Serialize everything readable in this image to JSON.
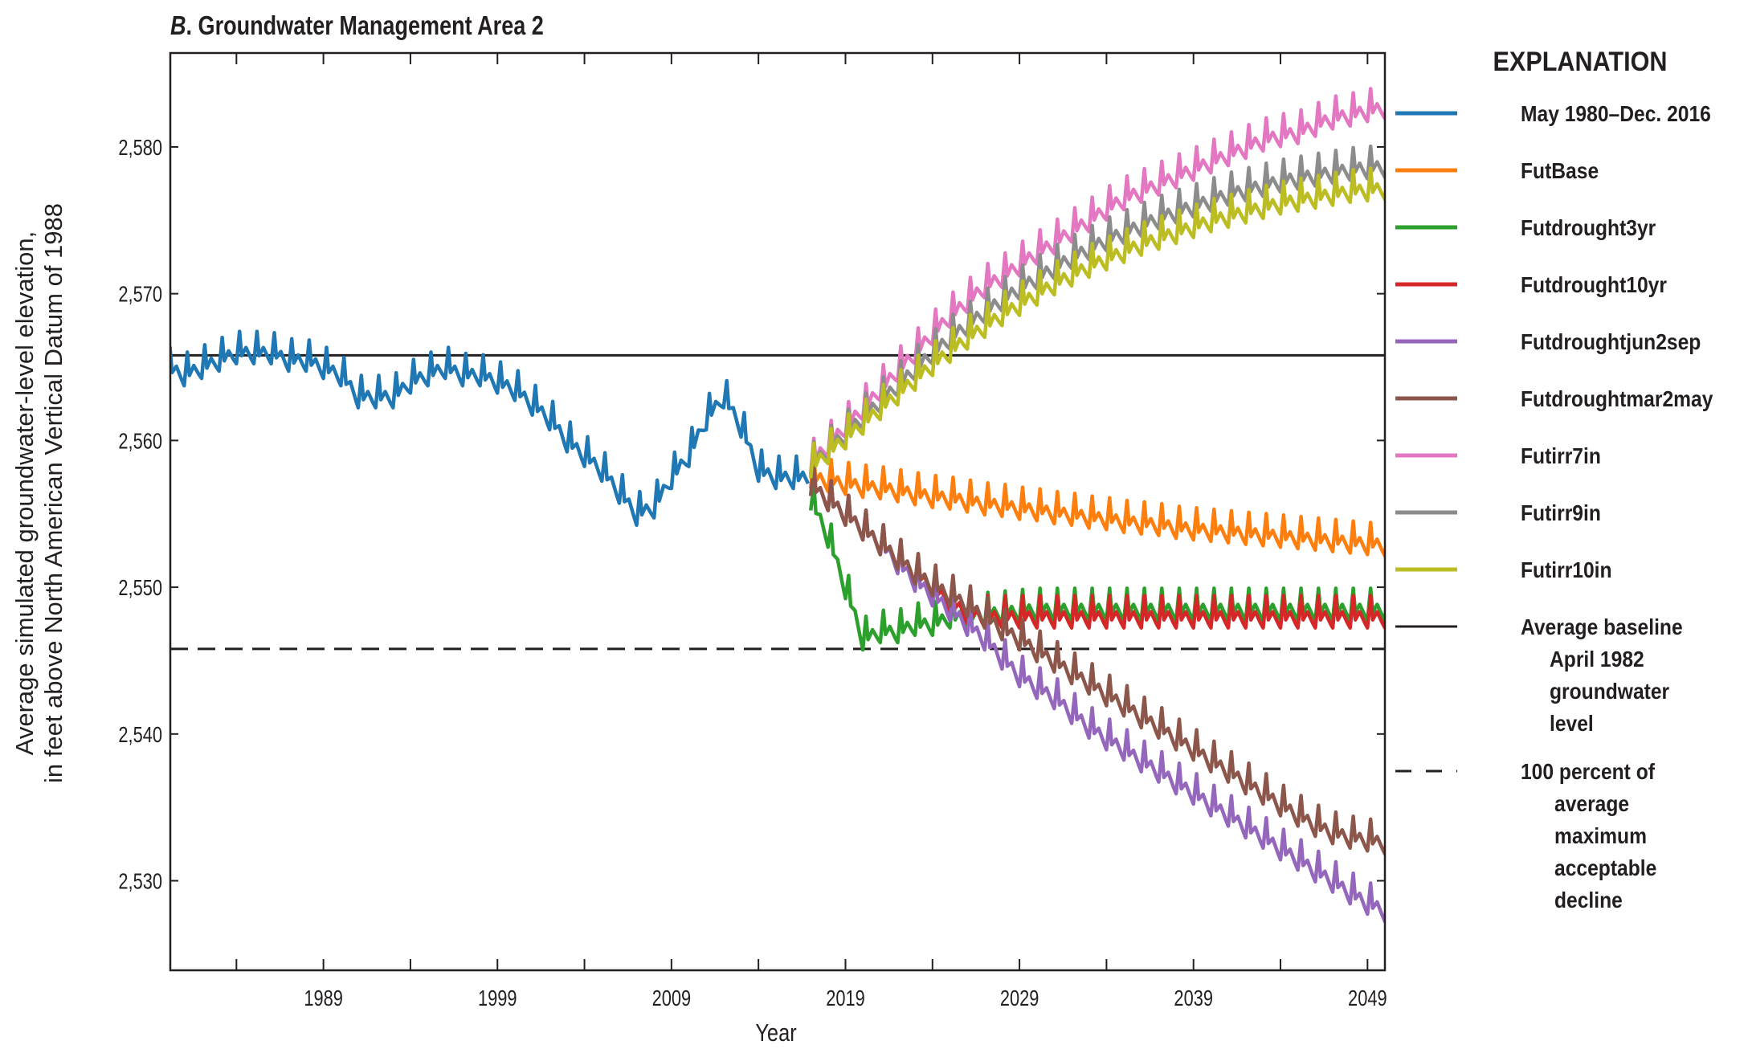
{
  "chart_data": {
    "type": "line",
    "title_prefix": "B",
    "title": ". Groundwater Management Area 2",
    "xlabel": "Year",
    "ylabel_line1": "Average simulated groundwater-level elevation,",
    "ylabel_line2": "in feet above North American Vertical Datum of 1988",
    "xlim": [
      1980.2,
      2050.0
    ],
    "ylim": [
      2523.9,
      2586.4
    ],
    "x_ticks_major": [
      1989,
      1999,
      2009,
      2019,
      2029,
      2039,
      2049
    ],
    "x_tick_labels": [
      "1989",
      "1999",
      "2009",
      "2019",
      "2029",
      "2039",
      "2049"
    ],
    "x_ticks_minor": [
      1984,
      1994,
      2004,
      2014,
      2024,
      2034,
      2044
    ],
    "y_ticks": [
      2530,
      2540,
      2550,
      2560,
      2570,
      2580
    ],
    "y_tick_labels": [
      "2,530",
      "2,540",
      "2,550",
      "2,560",
      "2,570",
      "2,580"
    ],
    "grid": false,
    "legend_title": "EXPLANATION",
    "legend_placement": "right-outside",
    "seasonal_amplitude_ft": 2.2,
    "series": [
      {
        "name": "May 1980–Dec. 2016",
        "color": "#1f77b4",
        "start_year": 1980,
        "values": [
          2565,
          2564.5,
          2565,
          2565.5,
          2566,
          2566,
          2566,
          2565.5,
          2565.5,
          2565,
          2564.5,
          2563,
          2563,
          2563,
          2564,
          2564.5,
          2565,
          2564.5,
          2564.5,
          2564,
          2563.5,
          2562.5,
          2561.5,
          2560,
          2559,
          2558,
          2556.5,
          2555,
          2555.5,
          2557.5,
          2559,
          2561.5,
          2563,
          2561,
          2558,
          2557.5,
          2557.5
        ]
      },
      {
        "name": "FutBase",
        "color": "#ff7f0e",
        "start_year": 2017,
        "values": [
          2557.5,
          2557.3,
          2557.1,
          2556.9,
          2556.8,
          2556.6,
          2556.4,
          2556.2,
          2556.1,
          2555.9,
          2555.7,
          2555.6,
          2555.4,
          2555.3,
          2555.1,
          2555,
          2554.8,
          2554.7,
          2554.5,
          2554.4,
          2554.3,
          2554.1,
          2554,
          2553.9,
          2553.8,
          2553.7,
          2553.6,
          2553.5,
          2553.4,
          2553.3,
          2553.2,
          2553.1,
          2553,
          2552.9
        ]
      },
      {
        "name": "Futdrought3yr",
        "color": "#2ca02c",
        "start_year": 2017,
        "values": [
          2556,
          2553.5,
          2550,
          2546.5,
          2547,
          2547,
          2547.5,
          2547.5,
          2548,
          2548,
          2548.2,
          2548.3,
          2548.4,
          2548.5,
          2548.5,
          2548.5,
          2548.5,
          2548.5,
          2548.5,
          2548.5,
          2548.5,
          2548.5,
          2548.5,
          2548.5,
          2548.5,
          2548.5,
          2548.5,
          2548.5,
          2548.5,
          2548.5,
          2548.5,
          2548.5,
          2548.5,
          2548.5
        ]
      },
      {
        "name": "Futdrought10yr",
        "color": "#d62728",
        "start_year": 2017,
        "values": [
          2557,
          2556,
          2555,
          2554,
          2553,
          2552,
          2551,
          2550,
          2549,
          2548.3,
          2548,
          2548,
          2548,
          2548,
          2548,
          2548,
          2548,
          2548,
          2548,
          2548,
          2548,
          2548,
          2548,
          2548,
          2548,
          2548,
          2548,
          2548,
          2548,
          2548,
          2548,
          2548,
          2548,
          2548
        ]
      },
      {
        "name": "Futdroughtjun2sep",
        "color": "#9467bd",
        "start_year": 2017,
        "values": [
          2557,
          2556,
          2555,
          2554,
          2553,
          2551.7,
          2550.5,
          2549.5,
          2548.5,
          2547.5,
          2546.5,
          2545.2,
          2544,
          2543.2,
          2542.5,
          2541.5,
          2540.5,
          2539.7,
          2539,
          2538.2,
          2537.5,
          2536.7,
          2536,
          2535.2,
          2534.5,
          2533.7,
          2533,
          2532.2,
          2531.5,
          2530.7,
          2530,
          2529.2,
          2528.5,
          2528
        ]
      },
      {
        "name": "Futdroughtmar2may",
        "color": "#8c564b",
        "start_year": 2017,
        "values": [
          2557,
          2556,
          2555,
          2554,
          2553,
          2552,
          2551,
          2550.2,
          2549.5,
          2548.8,
          2548,
          2547.2,
          2546.5,
          2545.7,
          2545,
          2544.2,
          2543.5,
          2542.7,
          2542,
          2541.2,
          2540.5,
          2539.7,
          2539,
          2538.2,
          2537.5,
          2536.7,
          2536,
          2535.2,
          2534.5,
          2533.8,
          2533.3,
          2533,
          2532.8,
          2532.6
        ]
      },
      {
        "name": "Futirr7in",
        "color": "#e377c2",
        "start_year": 2017,
        "values": [
          2558.5,
          2559.7,
          2561,
          2562.2,
          2563.5,
          2564.8,
          2566,
          2567.3,
          2568.5,
          2569.5,
          2570.5,
          2571.2,
          2572,
          2572.8,
          2573.5,
          2574.3,
          2575,
          2575.8,
          2576.5,
          2577,
          2577.5,
          2578,
          2578.5,
          2579,
          2579.5,
          2580,
          2580.5,
          2580.8,
          2581,
          2581.5,
          2582,
          2582.2,
          2582.5,
          2582.7
        ]
      },
      {
        "name": "Futirr9in",
        "color": "#8c8c8c",
        "start_year": 2017,
        "values": [
          2558.3,
          2559.4,
          2560.5,
          2561.6,
          2562.7,
          2563.8,
          2564.9,
          2566,
          2567,
          2567.9,
          2568.8,
          2569.6,
          2570.4,
          2571.1,
          2571.8,
          2572.5,
          2573.1,
          2573.7,
          2574.2,
          2574.7,
          2575.2,
          2575.6,
          2576,
          2576.4,
          2576.8,
          2577.1,
          2577.4,
          2577.7,
          2577.9,
          2578.1,
          2578.3,
          2578.5,
          2578.6,
          2578.7
        ]
      },
      {
        "name": "Futirr10in",
        "color": "#bcbd22",
        "start_year": 2017,
        "values": [
          2558.2,
          2559.2,
          2560.2,
          2561.2,
          2562.2,
          2563.2,
          2564.2,
          2565.2,
          2566.1,
          2567,
          2567.8,
          2568.6,
          2569.3,
          2570,
          2570.7,
          2571.3,
          2571.9,
          2572.4,
          2572.9,
          2573.4,
          2573.8,
          2574.2,
          2574.6,
          2575,
          2575.3,
          2575.6,
          2575.9,
          2576.2,
          2576.4,
          2576.6,
          2576.8,
          2577,
          2577.1,
          2577.2
        ]
      }
    ],
    "reference_lines": [
      {
        "name": "Average baseline April 1982 groundwater level",
        "value": 2565.8,
        "style": "solid",
        "color": "#231f20",
        "legend_lines": [
          "Average baseline",
          "April 1982",
          "groundwater",
          "level"
        ]
      },
      {
        "name": "100 percent of average maximum acceptable decline",
        "value": 2545.8,
        "style": "dashed",
        "color": "#231f20",
        "legend_lines": [
          "100 percent of",
          "average",
          "maximum",
          "acceptable",
          "decline"
        ]
      }
    ]
  }
}
